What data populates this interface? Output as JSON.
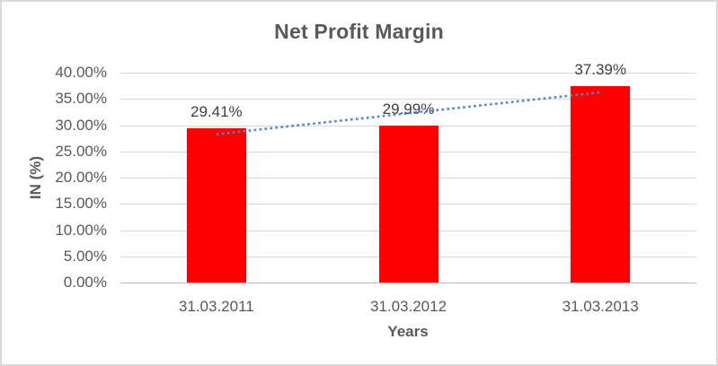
{
  "chart_data": {
    "type": "bar",
    "title": "Net Profit Margin",
    "xlabel": "Years",
    "ylabel": "IN (%)",
    "categories": [
      "31.03.2011",
      "31.03.2012",
      "31.03.2013"
    ],
    "series": [
      {
        "name": "Net Profit Margin",
        "values": [
          29.41,
          29.99,
          37.39
        ]
      }
    ],
    "data_labels": [
      "29.41%",
      "29.99%",
      "37.39%"
    ],
    "y_ticks": [
      "40.00%",
      "35.00%",
      "30.00%",
      "25.00%",
      "20.00%",
      "15.00%",
      "10.00%",
      "5.00%",
      "0.00%"
    ],
    "ylim": [
      0,
      40
    ],
    "y_tick_step": 5,
    "grid": true,
    "legend": "none",
    "trendline": {
      "type": "linear",
      "style": "dotted",
      "start_value": 28.27,
      "end_value": 36.25
    },
    "colors": {
      "bar": "#ff0000",
      "trendline": "#4e86c8",
      "gridline": "#d9d9d9",
      "axis_line": "#bfbfbf",
      "text": "#595959",
      "data_label_text": "#404040",
      "border": "#d9d9d9",
      "background": "#ffffff"
    }
  }
}
